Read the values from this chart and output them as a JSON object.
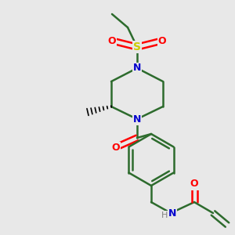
{
  "background_color": "#e8e8e8",
  "atom_colors": {
    "C": "#000000",
    "N": "#0000cd",
    "O": "#ff0000",
    "S": "#cccc00",
    "H": "#808080"
  },
  "bond_color": "#2d6b2d",
  "bond_width": 1.8,
  "figsize": [
    3.0,
    3.0
  ],
  "dpi": 100
}
